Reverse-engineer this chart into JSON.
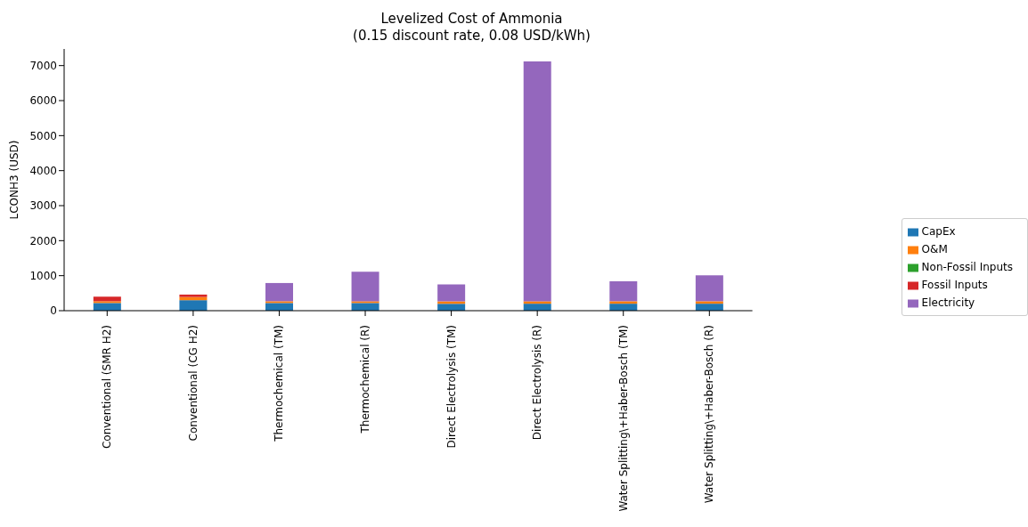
{
  "chart_data": {
    "type": "bar",
    "title": "Levelized Cost of Ammonia",
    "subtitle": "(0.15 discount rate, 0.08 USD/kWh)",
    "ylabel": "LCONH3 (USD)",
    "categories": [
      "Conventional (SMR H2)",
      "Conventional (CG H2)",
      "Thermochemical (TM)",
      "Thermochemical (R)",
      "Direct Electrolysis (TM)",
      "Direct Electrolysis (R)",
      "Water Splitting\\+Haber-Bosch (TM)",
      "Water Splitting\\+Haber-Bosch (R)"
    ],
    "series": [
      {
        "name": "CapEx",
        "color": "#1f77b4",
        "values": [
          220,
          300,
          220,
          220,
          200,
          200,
          200,
          200
        ]
      },
      {
        "name": "O&M",
        "color": "#ff7f0e",
        "values": [
          50,
          90,
          50,
          50,
          70,
          70,
          70,
          70
        ]
      },
      {
        "name": "Non-Fossil Inputs",
        "color": "#2ca02c",
        "values": [
          0,
          0,
          0,
          0,
          0,
          0,
          0,
          0
        ]
      },
      {
        "name": "Fossil Inputs",
        "color": "#d62728",
        "values": [
          130,
          70,
          0,
          0,
          0,
          0,
          0,
          0
        ]
      },
      {
        "name": "Electricity",
        "color": "#9467bd",
        "values": [
          0,
          0,
          520,
          840,
          480,
          6850,
          570,
          740
        ]
      }
    ],
    "stacked": true,
    "ylim": [
      0,
      7475
    ],
    "yticks": [
      0,
      1000,
      2000,
      3000,
      4000,
      5000,
      6000,
      7000
    ],
    "grid": false,
    "legend": "right"
  }
}
